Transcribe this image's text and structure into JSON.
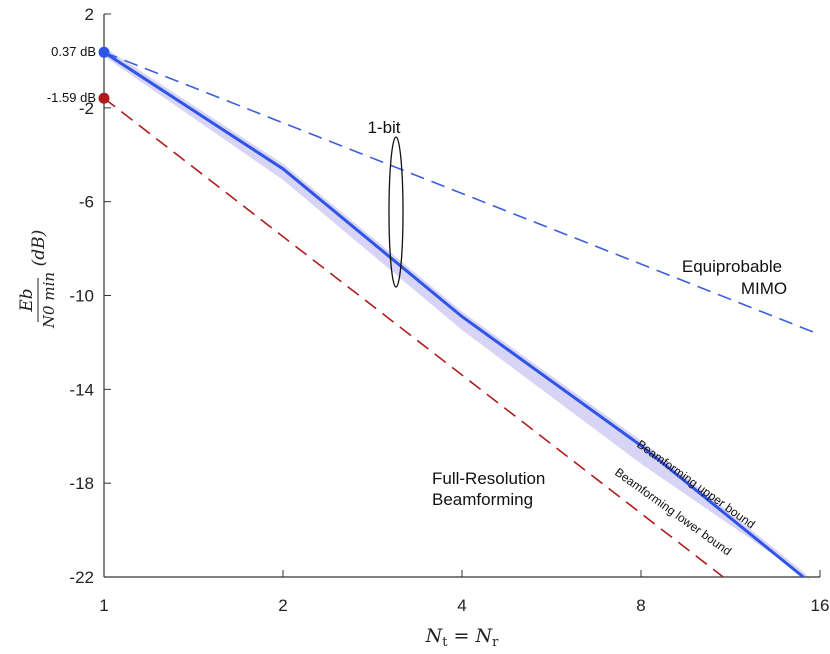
{
  "chart_data": {
    "type": "line",
    "xscale": "log2",
    "xlim": [
      1,
      16
    ],
    "ylim": [
      -22,
      2
    ],
    "xticks": [
      1,
      2,
      4,
      8,
      16
    ],
    "yticks": [
      2,
      -2,
      -6,
      -10,
      -14,
      -18,
      -22
    ],
    "xlabel": "N_t = N_r",
    "ylabel": "E_b / N_0 min (dB)",
    "series": [
      {
        "name": "Equiprobable MIMO",
        "style": "dashed",
        "color": "#3a5fd9",
        "x": [
          1,
          16
        ],
        "y": [
          0.37,
          -11.67
        ]
      },
      {
        "name": "Full-Resolution Beamforming",
        "style": "dashed",
        "color": "#b01c1c",
        "x": [
          1,
          11
        ],
        "y": [
          -1.59,
          -22
        ]
      },
      {
        "name": "Beamforming upper bound",
        "style": "solid",
        "color": "#2e55e8",
        "x": [
          1,
          2,
          4,
          8,
          15
        ],
        "y": [
          0.37,
          -4.6,
          -10.9,
          -16.4,
          -22
        ]
      },
      {
        "name": "Beamforming lower bound",
        "style": "band",
        "color": "#c9c6f2",
        "x": [
          1,
          2,
          4,
          8,
          15.5
        ],
        "y": [
          0.37,
          -4.9,
          -11.3,
          -17.0,
          -22
        ]
      }
    ],
    "markers": [
      {
        "label": "0.37 dB",
        "x": 1,
        "y": 0.37,
        "color": "#2e55e8"
      },
      {
        "label": "-1.59 dB",
        "x": 1,
        "y": -1.59,
        "color": "#b01c1c"
      }
    ],
    "annotations": [
      {
        "text": "1-bit"
      },
      {
        "text": "Equiprobable",
        "text2": "MIMO"
      },
      {
        "text": "Full-Resolution",
        "text2": "Beamforming"
      },
      {
        "text": "Beamforming upper bound"
      },
      {
        "text": "Beamforming lower bound"
      }
    ]
  }
}
